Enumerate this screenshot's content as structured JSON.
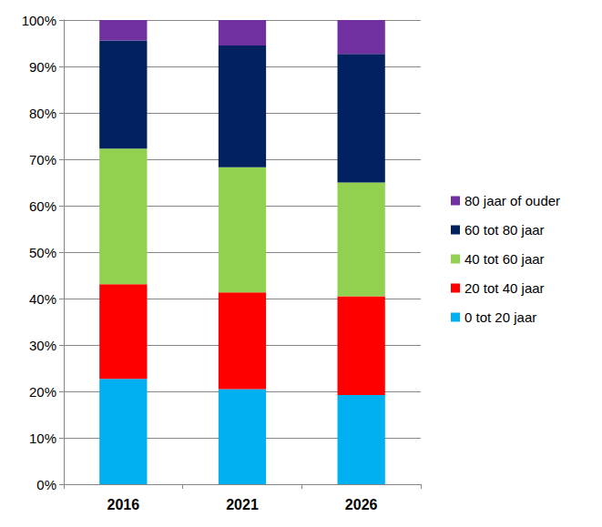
{
  "chart_data": {
    "type": "bar",
    "stacked": true,
    "grid": true,
    "legend": "right",
    "categories": [
      "2016",
      "2021",
      "2026"
    ],
    "series": [
      {
        "name": "0 tot 20 jaar",
        "color": "#00b0f0",
        "values": [
          22.7,
          20.5,
          19.2
        ]
      },
      {
        "name": "20 tot 40 jaar",
        "color": "#ff0000",
        "values": [
          20.4,
          20.8,
          21.3
        ]
      },
      {
        "name": "40 tot 60 jaar",
        "color": "#92d050",
        "values": [
          29.2,
          27.0,
          24.5
        ]
      },
      {
        "name": "60 tot 80 jaar",
        "color": "#002060",
        "values": [
          23.3,
          26.2,
          27.7
        ]
      },
      {
        "name": "80 jaar of ouder",
        "color": "#7030a0",
        "values": [
          4.4,
          5.5,
          7.3
        ]
      }
    ],
    "ylim": [
      0,
      100
    ],
    "yticks": [
      {
        "value": 0,
        "label": "0%"
      },
      {
        "value": 10,
        "label": "10%"
      },
      {
        "value": 20,
        "label": "20%"
      },
      {
        "value": 30,
        "label": "30%"
      },
      {
        "value": 40,
        "label": "40%"
      },
      {
        "value": 50,
        "label": "50%"
      },
      {
        "value": 60,
        "label": "60%"
      },
      {
        "value": 70,
        "label": "70%"
      },
      {
        "value": 80,
        "label": "80%"
      },
      {
        "value": 90,
        "label": "90%"
      },
      {
        "value": 100,
        "label": "100%"
      }
    ]
  }
}
